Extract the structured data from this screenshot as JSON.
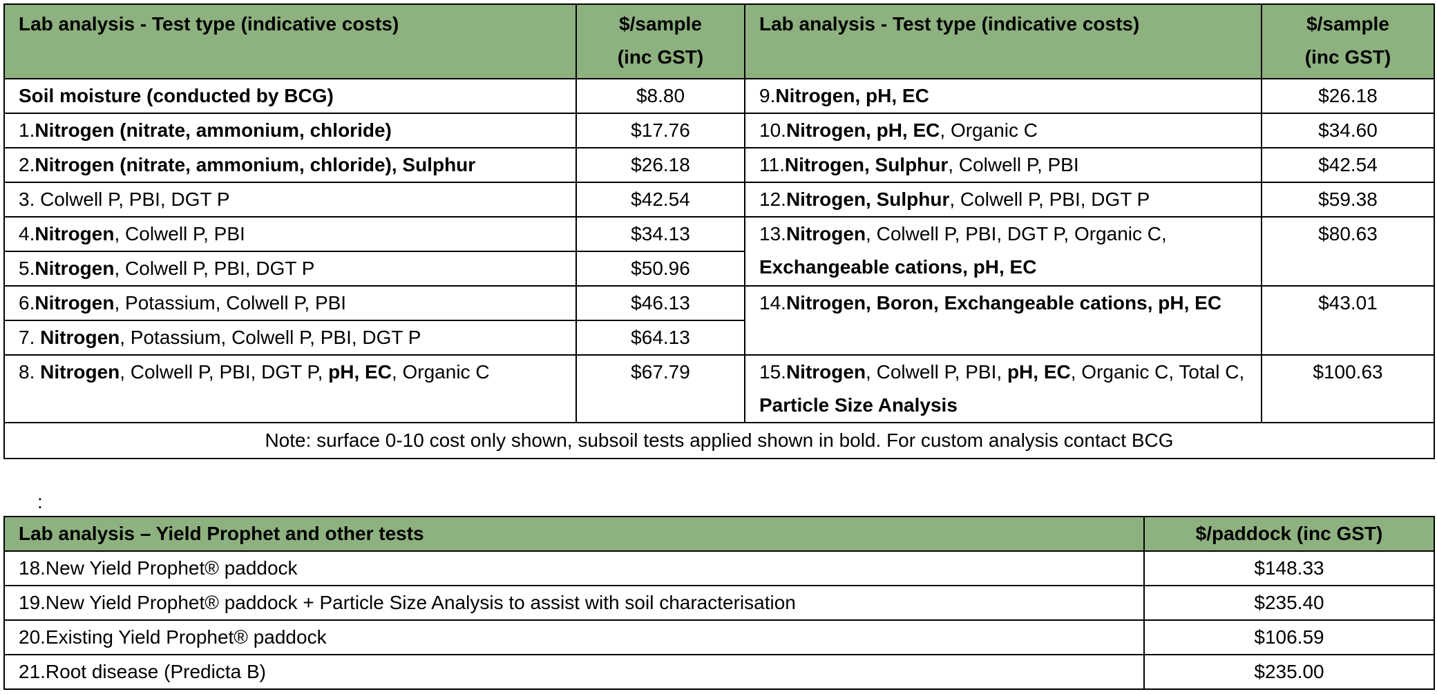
{
  "table1": {
    "header": {
      "test_type": "Lab analysis - Test type (indicative costs)",
      "price_line1": "$/sample",
      "price_line2": "(inc GST)"
    },
    "left": [
      {
        "segments": [
          {
            "t": "Soil moisture (conducted by BCG)",
            "b": true
          }
        ],
        "price": "$8.80"
      },
      {
        "segments": [
          {
            "t": "1.",
            "b": false
          },
          {
            "t": "Nitrogen (nitrate, ammonium, chloride)",
            "b": true
          }
        ],
        "price": "$17.76"
      },
      {
        "segments": [
          {
            "t": "2.",
            "b": false
          },
          {
            "t": "Nitrogen (nitrate, ammonium, chloride), Sulphur",
            "b": true
          }
        ],
        "price": "$26.18"
      },
      {
        "segments": [
          {
            "t": "3. Colwell P, PBI, DGT P",
            "b": false
          }
        ],
        "price": "$42.54"
      },
      {
        "segments": [
          {
            "t": "4.",
            "b": false
          },
          {
            "t": "Nitrogen",
            "b": true
          },
          {
            "t": ", Colwell P, PBI",
            "b": false
          }
        ],
        "price": "$34.13"
      },
      {
        "segments": [
          {
            "t": "5.",
            "b": false
          },
          {
            "t": "Nitrogen",
            "b": true
          },
          {
            "t": ", Colwell P, PBI, DGT P",
            "b": false
          }
        ],
        "price": "$50.96"
      },
      {
        "segments": [
          {
            "t": "6.",
            "b": false
          },
          {
            "t": "Nitrogen",
            "b": true
          },
          {
            "t": ", Potassium, Colwell P, PBI",
            "b": false
          }
        ],
        "price": "$46.13"
      },
      {
        "segments": [
          {
            "t": "7. ",
            "b": false
          },
          {
            "t": "Nitrogen",
            "b": true
          },
          {
            "t": ", Potassium, Colwell P, PBI, DGT P",
            "b": false
          }
        ],
        "price": "$64.13"
      },
      {
        "segments": [
          {
            "t": "8. ",
            "b": false
          },
          {
            "t": "Nitrogen",
            "b": true
          },
          {
            "t": ", Colwell P, PBI, DGT P, ",
            "b": false
          },
          {
            "t": "pH, EC",
            "b": true
          },
          {
            "t": ", Organic C",
            "b": false
          }
        ],
        "price": "$67.79"
      }
    ],
    "right": [
      {
        "segments": [
          {
            "t": "9.",
            "b": false
          },
          {
            "t": "Nitrogen, pH, EC",
            "b": true
          }
        ],
        "price": "$26.18"
      },
      {
        "segments": [
          {
            "t": "10.",
            "b": false
          },
          {
            "t": "Nitrogen, pH, EC",
            "b": true
          },
          {
            "t": ", Organic C",
            "b": false
          }
        ],
        "price": "$34.60"
      },
      {
        "segments": [
          {
            "t": "11.",
            "b": false
          },
          {
            "t": "Nitrogen, Sulphur",
            "b": true
          },
          {
            "t": ", Colwell P, PBI",
            "b": false
          }
        ],
        "price": "$42.54"
      },
      {
        "segments": [
          {
            "t": "12.",
            "b": false
          },
          {
            "t": "Nitrogen, Sulphur",
            "b": true
          },
          {
            "t": ", Colwell P, PBI, DGT P",
            "b": false
          }
        ],
        "price": "$59.38"
      },
      {
        "segments": [
          {
            "t": "13.",
            "b": false
          },
          {
            "t": "Nitrogen",
            "b": true
          },
          {
            "t": ", Colwell P, PBI, DGT P, Organic C, ",
            "b": false
          },
          {
            "t": "Exchangeable cations, pH, EC",
            "b": true
          }
        ],
        "price": "$80.63"
      },
      {
        "segments": [
          {
            "t": "14.",
            "b": false
          },
          {
            "t": "Nitrogen, Boron, Exchangeable cations, pH, EC",
            "b": true
          }
        ],
        "price": "$43.01"
      },
      {
        "segments": [
          {
            "t": "15.",
            "b": false
          },
          {
            "t": "Nitrogen",
            "b": true
          },
          {
            "t": ", Colwell P, PBI, ",
            "b": false
          },
          {
            "t": "pH, EC",
            "b": true
          },
          {
            "t": ", Organic C, Total C, ",
            "b": false
          },
          {
            "t": "Particle Size Analysis",
            "b": true
          }
        ],
        "price": "$100.63"
      }
    ],
    "note": "Note: surface 0-10 cost only shown, subsoil tests applied shown in bold. For custom analysis contact BCG"
  },
  "separator": ":",
  "table2": {
    "header": {
      "test": "Lab analysis – Yield Prophet and other tests",
      "price": "$/paddock (inc GST)"
    },
    "rows": [
      {
        "label": "18.New Yield Prophet® paddock",
        "price": "$148.33"
      },
      {
        "label": "19.New Yield Prophet® paddock + Particle Size Analysis to assist with soil characterisation",
        "price": "$235.40"
      },
      {
        "label": "20.Existing Yield Prophet® paddock",
        "price": "$106.59"
      },
      {
        "label": "21.Root disease (Predicta B)",
        "price": "$235.00"
      }
    ]
  },
  "colors": {
    "header_bg": "#8db17f",
    "border": "#000000"
  }
}
